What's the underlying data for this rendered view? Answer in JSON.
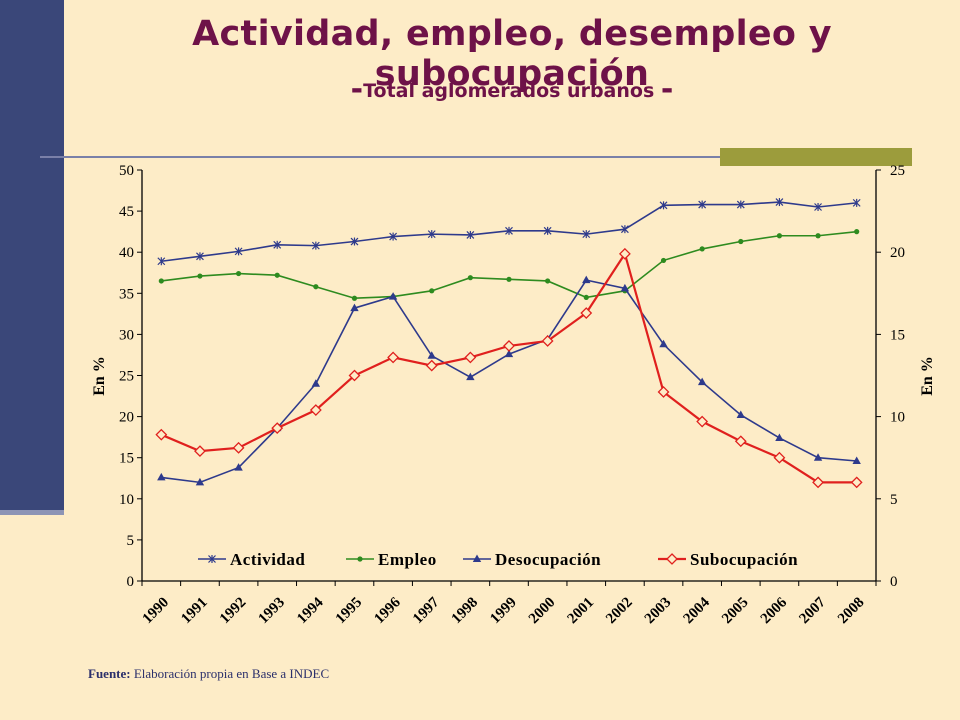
{
  "slide": {
    "title": "Actividad, empleo, desempleo y subocupación",
    "subtitle_dash_left": "-",
    "subtitle": "Total aglomerados urbanos",
    "subtitle_dash_right": "-",
    "source_label": "Fuente:",
    "source_text": "Elaboración propia en Base a INDEC"
  },
  "colors": {
    "background": "#fdecc7",
    "title": "#6e1248",
    "left_bar": "#3a4779",
    "olive_accent": "#9c9c3c"
  },
  "chart_data": {
    "type": "line",
    "categories": [
      "1990",
      "1991",
      "1992",
      "1993",
      "1994",
      "1995",
      "1996",
      "1997",
      "1998",
      "1999",
      "2000",
      "2001",
      "2002",
      "2003",
      "2004",
      "2005",
      "2006",
      "2007",
      "2008"
    ],
    "ylabel": "En %",
    "y2label": "En %",
    "ylim": [
      0,
      50
    ],
    "yticks": [
      0,
      5,
      10,
      15,
      20,
      25,
      30,
      35,
      40,
      45,
      50
    ],
    "y2lim": [
      0,
      25
    ],
    "y2ticks": [
      0,
      5,
      10,
      15,
      20,
      25
    ],
    "grid": false,
    "legend_position": "bottom-inside",
    "series": [
      {
        "name": "Actividad",
        "axis": "left",
        "color": "#2e3a8c",
        "marker": "star",
        "values": [
          38.9,
          39.5,
          40.1,
          40.9,
          40.8,
          41.3,
          41.9,
          42.2,
          42.1,
          42.6,
          42.6,
          42.2,
          42.8,
          45.7,
          45.8,
          45.8,
          46.1,
          45.5,
          46.0
        ]
      },
      {
        "name": "Empleo",
        "axis": "left",
        "color": "#2e8b1f",
        "marker": "circle",
        "values": [
          36.5,
          37.1,
          37.4,
          37.2,
          35.8,
          34.4,
          34.6,
          35.3,
          36.9,
          36.7,
          36.5,
          34.5,
          35.3,
          39.0,
          40.4,
          41.3,
          42.0,
          42.0,
          42.5
        ]
      },
      {
        "name": "Desocupación",
        "axis": "right",
        "color": "#2e3a8c",
        "marker": "triangle",
        "values": [
          6.3,
          6.0,
          6.9,
          9.3,
          12.0,
          16.6,
          17.3,
          13.7,
          12.4,
          13.8,
          14.7,
          18.3,
          17.8,
          14.4,
          12.1,
          10.1,
          8.7,
          7.5,
          7.3
        ]
      },
      {
        "name": "Subocupación",
        "axis": "right",
        "color": "#e0201e",
        "marker": "diamond",
        "values": [
          8.9,
          7.9,
          8.1,
          9.3,
          10.4,
          12.5,
          13.6,
          13.1,
          13.6,
          14.3,
          14.6,
          16.3,
          19.9,
          11.5,
          9.7,
          8.5,
          7.5,
          6.0,
          6.0
        ]
      }
    ]
  }
}
